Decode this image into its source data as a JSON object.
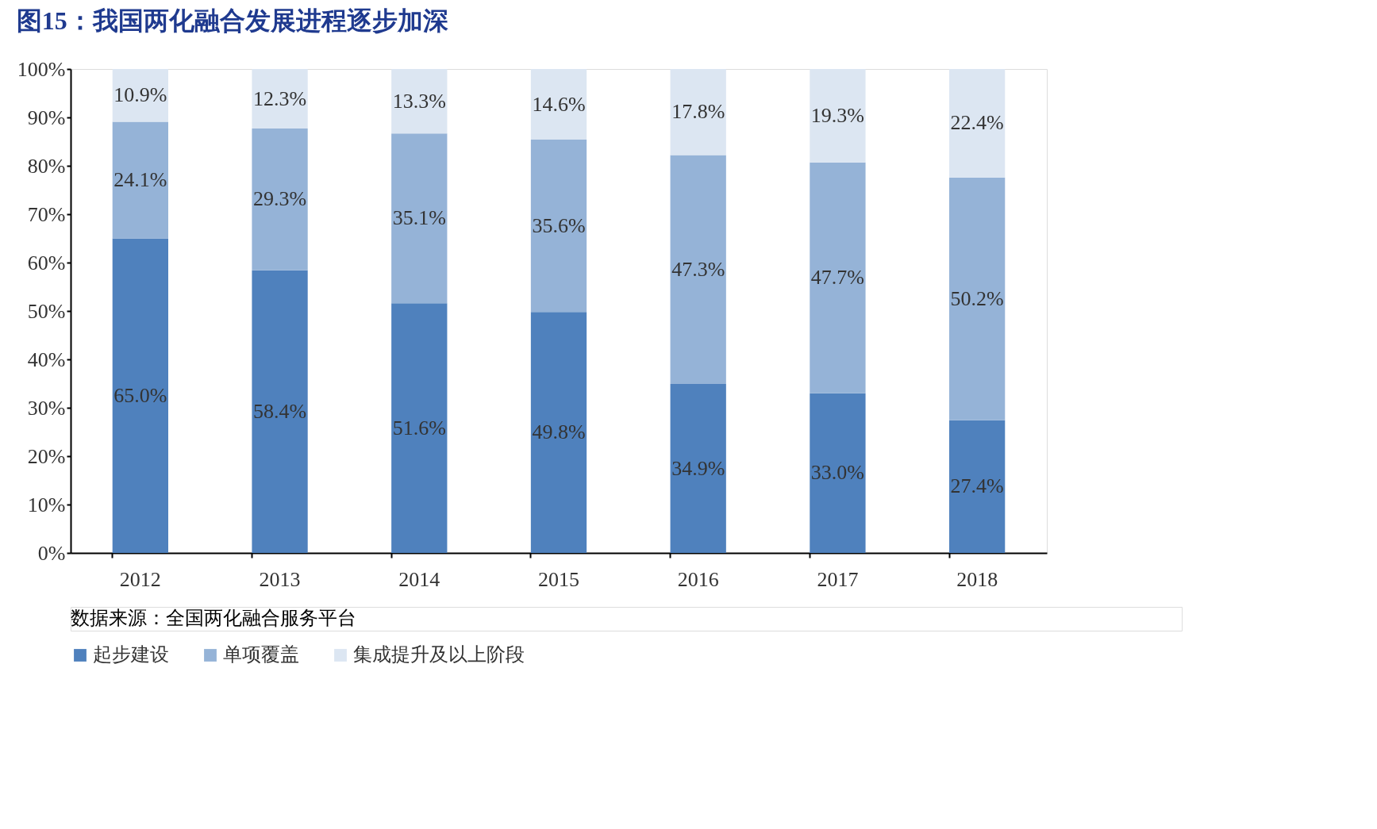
{
  "chart_data": {
    "type": "bar",
    "stacked": true,
    "title": "图15：我国两化融合发展进程逐步加深",
    "categories": [
      "2012",
      "2013",
      "2014",
      "2015",
      "2016",
      "2017",
      "2018"
    ],
    "series": [
      {
        "name": "起步建设",
        "color": "#4f81bd",
        "values": [
          65.0,
          58.4,
          51.6,
          49.8,
          34.9,
          33.0,
          27.4
        ],
        "value_labels": [
          "65.0%",
          "58.4%",
          "51.6%",
          "49.8%",
          "34.9%",
          "33.0%",
          "27.4%"
        ]
      },
      {
        "name": "单项覆盖",
        "color": "#95b3d7",
        "values": [
          24.1,
          29.3,
          35.1,
          35.6,
          47.3,
          47.7,
          50.2
        ],
        "value_labels": [
          "24.1%",
          "29.3%",
          "35.1%",
          "35.6%",
          "47.3%",
          "47.7%",
          "50.2%"
        ]
      },
      {
        "name": "集成提升及以上阶段",
        "color": "#dce6f2",
        "values": [
          10.9,
          12.3,
          13.3,
          14.6,
          17.8,
          19.3,
          22.4
        ],
        "value_labels": [
          "10.9%",
          "12.3%",
          "13.3%",
          "14.6%",
          "17.8%",
          "19.3%",
          "22.4%"
        ]
      }
    ],
    "ylim": [
      0,
      100
    ],
    "yticks": [
      {
        "value": 0,
        "label": "0%"
      },
      {
        "value": 10,
        "label": "10%"
      },
      {
        "value": 20,
        "label": "20%"
      },
      {
        "value": 30,
        "label": "30%"
      },
      {
        "value": 40,
        "label": "40%"
      },
      {
        "value": 50,
        "label": "50%"
      },
      {
        "value": 60,
        "label": "60%"
      },
      {
        "value": 70,
        "label": "70%"
      },
      {
        "value": 80,
        "label": "80%"
      },
      {
        "value": 90,
        "label": "90%"
      },
      {
        "value": 100,
        "label": "100%"
      }
    ],
    "grid": false,
    "legend": "bottom",
    "annotations": [
      "数据来源：全国两化融合服务平台"
    ]
  }
}
